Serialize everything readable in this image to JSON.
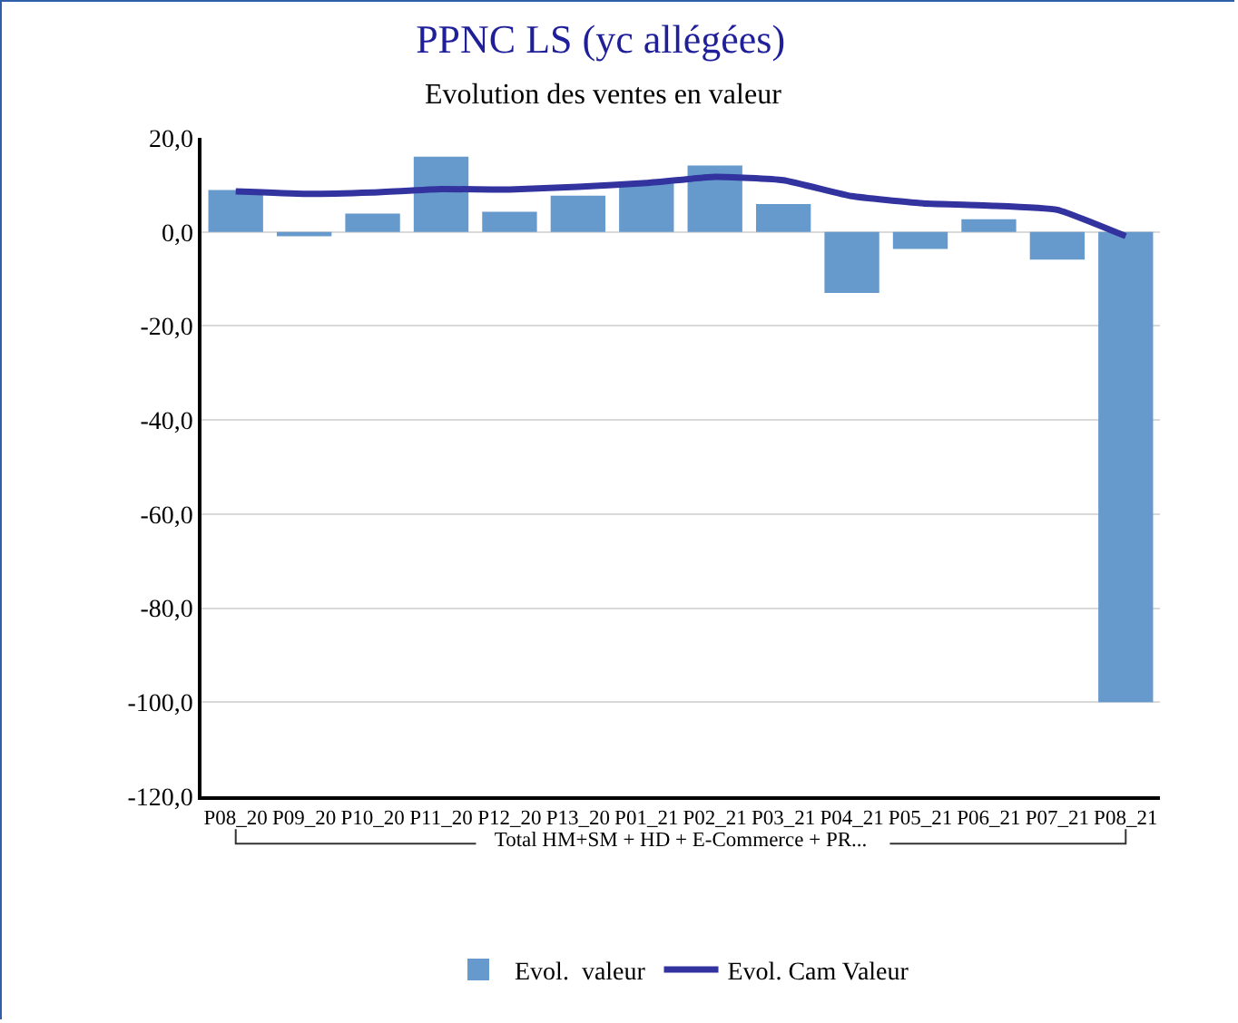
{
  "chart_data": {
    "type": "bar",
    "title": "PPNC LS (yc allégées)",
    "subtitle": "Evolution des ventes en valeur",
    "xlabel": "Total HM+SM + HD + E-Commerce + PR...",
    "categories": [
      "P08_20",
      "P09_20",
      "P10_20",
      "P11_20",
      "P12_20",
      "P13_20",
      "P01_21",
      "P02_21",
      "P03_21",
      "P04_21",
      "P05_21",
      "P06_21",
      "P07_21",
      "P08_21"
    ],
    "series": [
      {
        "name": "Evol.  valeur",
        "color": "#6699cc",
        "values": [
          8.9,
          -0.9,
          3.9,
          16.0,
          4.3,
          7.7,
          10.3,
          14.1,
          5.9,
          -13.0,
          -3.6,
          2.7,
          -5.9,
          -100.0
        ]
      },
      {
        "name": "Evol. Cam Valeur",
        "type": "line",
        "color": "#3333a0",
        "values": [
          8.6,
          8.1,
          8.4,
          9.1,
          9.0,
          9.6,
          10.4,
          11.7,
          11.0,
          7.6,
          6.1,
          5.6,
          4.7,
          -0.9
        ]
      }
    ],
    "ylim": [
      -120,
      20
    ],
    "yticks": [
      {
        "value": -120,
        "label": "-120,0"
      },
      {
        "value": -100,
        "label": "-100,0"
      },
      {
        "value": -80,
        "label": "-80,0"
      },
      {
        "value": -60,
        "label": "-60,0"
      },
      {
        "value": -40,
        "label": "-40,0"
      },
      {
        "value": -20,
        "label": "-20,0"
      },
      {
        "value": 0,
        "label": "0,0"
      },
      {
        "value": 20,
        "label": "20,0"
      }
    ],
    "grid": "y",
    "legend": "bottom"
  }
}
